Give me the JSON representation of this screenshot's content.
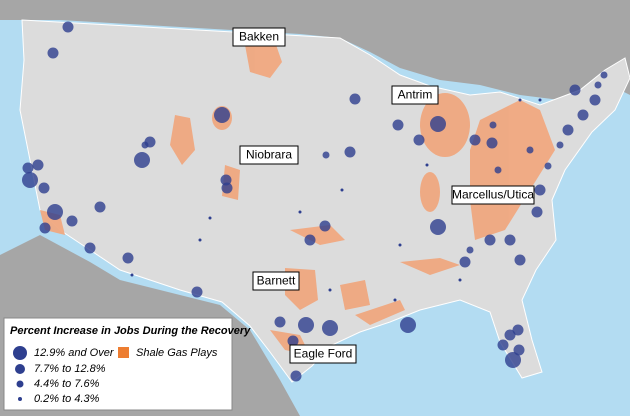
{
  "labels": [
    "Bakken",
    "Antrim",
    "Niobrara",
    "Marcellus/Utica",
    "Barnett",
    "Eagle Ford"
  ],
  "legend": {
    "title": "Percent Increase in Jobs During the Recovery",
    "classes": [
      "12.9% and Over",
      "7.7% to 12.8%",
      "4.4% to 7.6%",
      "0.2% to 4.3%"
    ],
    "shale": "Shale Gas Plays"
  }
}
